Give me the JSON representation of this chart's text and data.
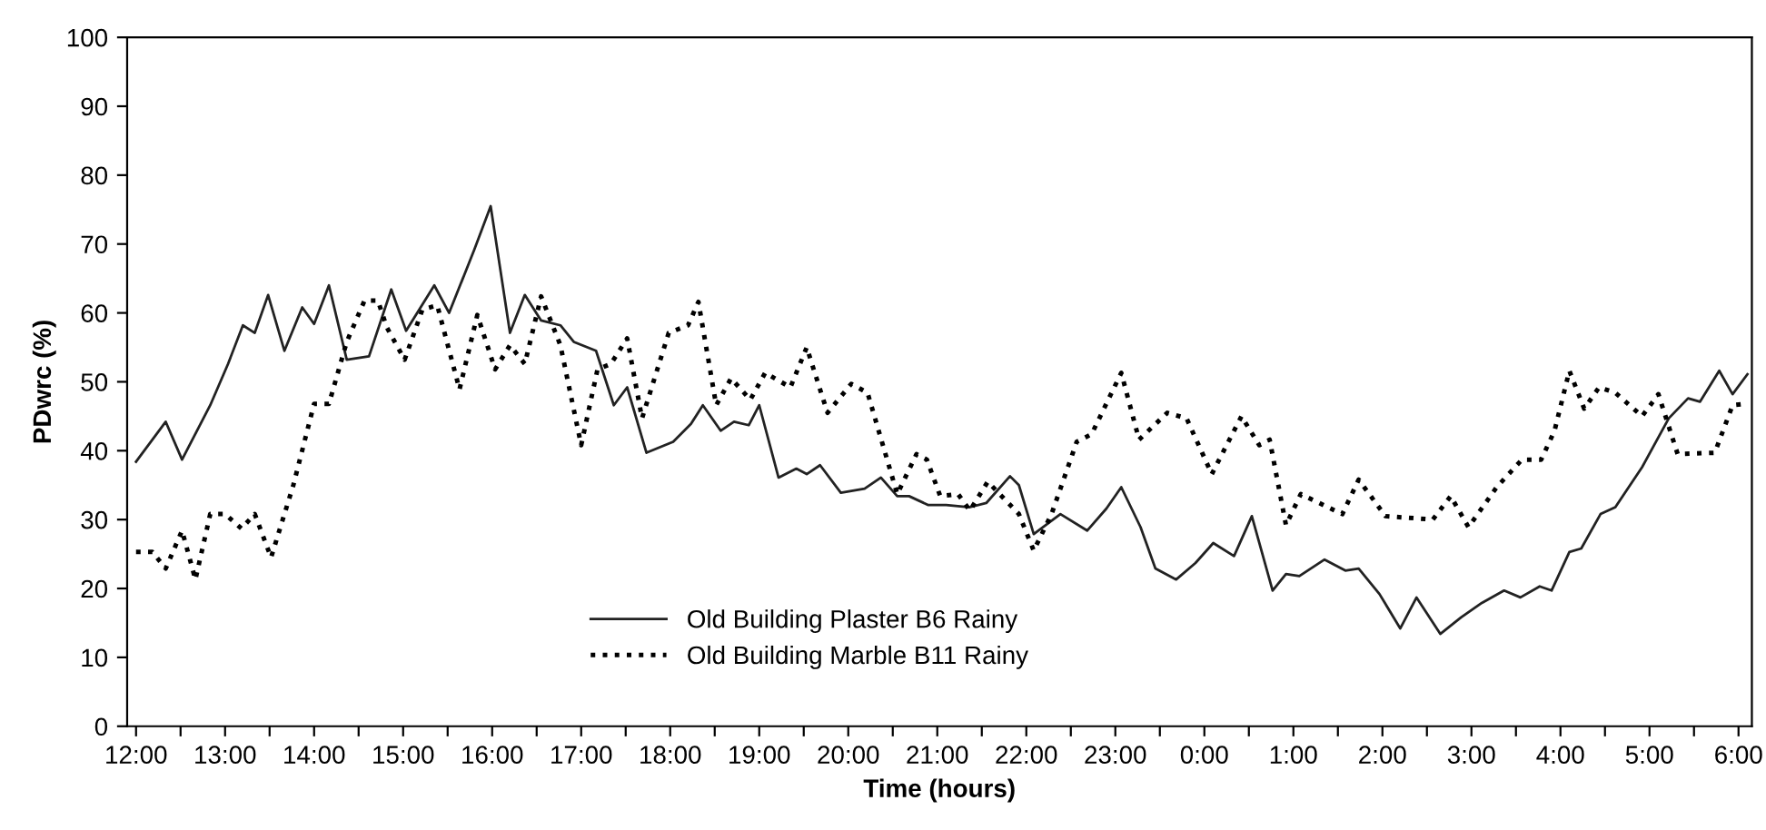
{
  "chart_data": {
    "type": "line",
    "xlabel": "Time (hours)",
    "ylabel": "PDwrc (%)",
    "xlim": [
      "2000-01-01T11:54",
      "2000-01-02T06:09"
    ],
    "ylim": [
      0,
      100
    ],
    "yticks": [
      0,
      10,
      20,
      30,
      40,
      50,
      60,
      70,
      80,
      90,
      100
    ],
    "xticks": [
      {
        "value": "2000-01-01T12:00",
        "label": "12:00"
      },
      {
        "value": "2000-01-01T12:30",
        "label": null
      },
      {
        "value": "2000-01-01T13:00",
        "label": "13:00"
      },
      {
        "value": "2000-01-01T13:30",
        "label": null
      },
      {
        "value": "2000-01-01T14:00",
        "label": "14:00"
      },
      {
        "value": "2000-01-01T14:30",
        "label": null
      },
      {
        "value": "2000-01-01T15:00",
        "label": "15:00"
      },
      {
        "value": "2000-01-01T15:30",
        "label": null
      },
      {
        "value": "2000-01-01T16:00",
        "label": "16:00"
      },
      {
        "value": "2000-01-01T16:30",
        "label": null
      },
      {
        "value": "2000-01-01T17:00",
        "label": "17:00"
      },
      {
        "value": "2000-01-01T17:30",
        "label": null
      },
      {
        "value": "2000-01-01T18:00",
        "label": "18:00"
      },
      {
        "value": "2000-01-01T18:30",
        "label": null
      },
      {
        "value": "2000-01-01T19:00",
        "label": "19:00"
      },
      {
        "value": "2000-01-01T19:30",
        "label": null
      },
      {
        "value": "2000-01-01T20:00",
        "label": "20:00"
      },
      {
        "value": "2000-01-01T20:30",
        "label": null
      },
      {
        "value": "2000-01-01T21:00",
        "label": "21:00"
      },
      {
        "value": "2000-01-01T21:30",
        "label": null
      },
      {
        "value": "2000-01-01T22:00",
        "label": "22:00"
      },
      {
        "value": "2000-01-01T22:30",
        "label": null
      },
      {
        "value": "2000-01-01T23:00",
        "label": "23:00"
      },
      {
        "value": "2000-01-01T23:30",
        "label": null
      },
      {
        "value": "2000-01-02T00:00",
        "label": "0:00"
      },
      {
        "value": "2000-01-02T00:30",
        "label": null
      },
      {
        "value": "2000-01-02T01:00",
        "label": "1:00"
      },
      {
        "value": "2000-01-02T01:30",
        "label": null
      },
      {
        "value": "2000-01-02T02:00",
        "label": "2:00"
      },
      {
        "value": "2000-01-02T02:30",
        "label": null
      },
      {
        "value": "2000-01-02T03:00",
        "label": "3:00"
      },
      {
        "value": "2000-01-02T03:30",
        "label": null
      },
      {
        "value": "2000-01-02T04:00",
        "label": "4:00"
      },
      {
        "value": "2000-01-02T04:30",
        "label": null
      },
      {
        "value": "2000-01-02T05:00",
        "label": "5:00"
      },
      {
        "value": "2000-01-02T05:30",
        "label": null
      },
      {
        "value": "2000-01-02T06:00",
        "label": "6:00"
      }
    ],
    "grid": false,
    "legend": "bottom",
    "marker": "none",
    "series": [
      {
        "name": "Old Building Plaster B6 Rainy",
        "color": "#222222",
        "line_style": "solid",
        "x": [
          "2000-01-01T12:00",
          "2000-01-01T12:20",
          "2000-01-01T12:31",
          "2000-01-01T12:50",
          "2000-01-01T13:02",
          "2000-01-01T13:12",
          "2000-01-01T13:20",
          "2000-01-01T13:29",
          "2000-01-01T13:40",
          "2000-01-01T13:52",
          "2000-01-01T14:00",
          "2000-01-01T14:10",
          "2000-01-01T14:22",
          "2000-01-01T14:37",
          "2000-01-01T14:52",
          "2000-01-01T15:02",
          "2000-01-01T15:21",
          "2000-01-01T15:31",
          "2000-01-01T15:48",
          "2000-01-01T15:59",
          "2000-01-01T16:12",
          "2000-01-01T16:22",
          "2000-01-01T16:33",
          "2000-01-01T16:46",
          "2000-01-01T16:55",
          "2000-01-01T17:10",
          "2000-01-01T17:22",
          "2000-01-01T17:31",
          "2000-01-01T17:44",
          "2000-01-01T18:02",
          "2000-01-01T18:14",
          "2000-01-01T18:22",
          "2000-01-01T18:34",
          "2000-01-01T18:43",
          "2000-01-01T18:53",
          "2000-01-01T19:00",
          "2000-01-01T19:13",
          "2000-01-01T19:25",
          "2000-01-01T19:32",
          "2000-01-01T19:41",
          "2000-01-01T19:55",
          "2000-01-01T20:11",
          "2000-01-01T20:22",
          "2000-01-01T20:33",
          "2000-01-01T20:41",
          "2000-01-01T20:54",
          "2000-01-01T21:06",
          "2000-01-01T21:22",
          "2000-01-01T21:33",
          "2000-01-01T21:49",
          "2000-01-01T21:55",
          "2000-01-01T22:05",
          "2000-01-01T22:23",
          "2000-01-01T22:41",
          "2000-01-01T22:54",
          "2000-01-01T23:04",
          "2000-01-01T23:17",
          "2000-01-01T23:27",
          "2000-01-01T23:41",
          "2000-01-01T23:54",
          "2000-01-02T00:06",
          "2000-01-02T00:20",
          "2000-01-02T00:32",
          "2000-01-02T00:46",
          "2000-01-02T00:55",
          "2000-01-02T01:04",
          "2000-01-02T01:21",
          "2000-01-02T01:35",
          "2000-01-02T01:44",
          "2000-01-02T01:58",
          "2000-01-02T02:12",
          "2000-01-02T02:23",
          "2000-01-02T02:39",
          "2000-01-02T02:53",
          "2000-01-02T03:07",
          "2000-01-02T03:22",
          "2000-01-02T03:33",
          "2000-01-02T03:46",
          "2000-01-02T03:54",
          "2000-01-02T04:06",
          "2000-01-02T04:14",
          "2000-01-02T04:27",
          "2000-01-02T04:37",
          "2000-01-02T04:55",
          "2000-01-02T05:13",
          "2000-01-02T05:26",
          "2000-01-02T05:34",
          "2000-01-02T05:47",
          "2000-01-02T05:56",
          "2000-01-02T06:06"
        ],
        "values": [
          38.4,
          44.2,
          38.7,
          46.6,
          52.6,
          58.2,
          57.1,
          62.6,
          54.5,
          60.8,
          58.4,
          64.0,
          53.2,
          53.7,
          63.4,
          57.4,
          64.0,
          60.0,
          69.2,
          75.5,
          57.1,
          62.6,
          58.9,
          58.2,
          55.8,
          54.5,
          46.6,
          49.2,
          39.7,
          41.3,
          43.9,
          46.6,
          42.9,
          44.2,
          43.7,
          46.6,
          36.1,
          37.4,
          36.6,
          37.9,
          33.9,
          34.5,
          36.1,
          33.4,
          33.4,
          32.1,
          32.1,
          31.8,
          32.4,
          36.3,
          35.0,
          27.9,
          30.8,
          28.4,
          31.6,
          34.7,
          28.9,
          22.9,
          21.3,
          23.7,
          26.6,
          24.7,
          30.5,
          19.7,
          22.1,
          21.8,
          24.2,
          22.6,
          22.9,
          19.2,
          14.2,
          18.7,
          13.4,
          15.8,
          17.9,
          19.7,
          18.7,
          20.3,
          19.7,
          25.3,
          25.8,
          30.8,
          31.8,
          37.6,
          44.7,
          47.6,
          47.1,
          51.6,
          48.2,
          51.1
        ]
      },
      {
        "name": "Old Building Marble B11 Rainy",
        "color": "#000000",
        "line_style": "dotted",
        "x": [
          "2000-01-01T12:00",
          "2000-01-01T12:11",
          "2000-01-01T12:20",
          "2000-01-01T12:31",
          "2000-01-01T12:40",
          "2000-01-01T12:50",
          "2000-01-01T13:00",
          "2000-01-01T13:11",
          "2000-01-01T13:20",
          "2000-01-01T13:31",
          "2000-01-01T13:46",
          "2000-01-01T14:00",
          "2000-01-01T14:10",
          "2000-01-01T14:22",
          "2000-01-01T14:34",
          "2000-01-01T14:43",
          "2000-01-01T14:49",
          "2000-01-01T15:01",
          "2000-01-01T15:13",
          "2000-01-01T15:23",
          "2000-01-01T15:38",
          "2000-01-01T15:50",
          "2000-01-01T16:02",
          "2000-01-01T16:12",
          "2000-01-01T16:22",
          "2000-01-01T16:33",
          "2000-01-01T16:46",
          "2000-01-01T17:00",
          "2000-01-01T17:11",
          "2000-01-01T17:20",
          "2000-01-01T17:31",
          "2000-01-01T17:41",
          "2000-01-01T17:59",
          "2000-01-01T18:12",
          "2000-01-01T18:19",
          "2000-01-01T18:31",
          "2000-01-01T18:41",
          "2000-01-01T18:54",
          "2000-01-01T19:04",
          "2000-01-01T19:21",
          "2000-01-01T19:32",
          "2000-01-01T19:46",
          "2000-01-01T20:02",
          "2000-01-01T20:13",
          "2000-01-01T20:33",
          "2000-01-01T20:46",
          "2000-01-01T20:53",
          "2000-01-01T21:02",
          "2000-01-01T21:14",
          "2000-01-01T21:22",
          "2000-01-01T21:34",
          "2000-01-01T21:55",
          "2000-01-01T22:05",
          "2000-01-01T22:17",
          "2000-01-01T22:34",
          "2000-01-01T22:44",
          "2000-01-01T23:04",
          "2000-01-01T23:16",
          "2000-01-01T23:35",
          "2000-01-01T23:48",
          "2000-01-02T00:05",
          "2000-01-02T00:25",
          "2000-01-02T00:37",
          "2000-01-02T00:44",
          "2000-01-02T00:55",
          "2000-01-02T01:05",
          "2000-01-02T01:33",
          "2000-01-02T01:44",
          "2000-01-02T02:02",
          "2000-01-02T02:34",
          "2000-01-02T02:46",
          "2000-01-02T02:58",
          "2000-01-02T03:17",
          "2000-01-02T03:34",
          "2000-01-02T03:47",
          "2000-01-02T03:56",
          "2000-01-02T04:06",
          "2000-01-02T04:16",
          "2000-01-02T04:26",
          "2000-01-02T04:37",
          "2000-01-02T04:55",
          "2000-01-02T05:06",
          "2000-01-02T05:19",
          "2000-01-02T05:44",
          "2000-01-02T05:56",
          "2000-01-02T06:05"
        ],
        "values": [
          25.3,
          25.3,
          22.9,
          28.4,
          21.3,
          30.8,
          30.8,
          28.7,
          30.8,
          24.5,
          35.0,
          46.8,
          46.8,
          55.8,
          61.8,
          61.8,
          57.9,
          53.2,
          60.5,
          61.1,
          48.9,
          59.7,
          51.8,
          55.3,
          52.6,
          62.4,
          55.3,
          40.8,
          51.8,
          52.6,
          56.3,
          44.7,
          57.1,
          58.2,
          61.6,
          46.6,
          50.5,
          47.4,
          51.3,
          49.2,
          55.0,
          45.5,
          49.7,
          48.4,
          33.7,
          39.5,
          38.7,
          33.4,
          33.7,
          31.3,
          35.5,
          30.8,
          25.5,
          30.8,
          41.3,
          42.4,
          51.3,
          41.6,
          45.5,
          44.7,
          36.6,
          45.0,
          40.8,
          41.6,
          29.2,
          33.7,
          30.8,
          35.8,
          30.5,
          30.0,
          33.4,
          28.9,
          34.7,
          38.7,
          38.7,
          42.9,
          51.6,
          46.1,
          49.2,
          48.4,
          45.0,
          48.2,
          39.5,
          39.7,
          46.6,
          46.8
        ]
      }
    ]
  }
}
